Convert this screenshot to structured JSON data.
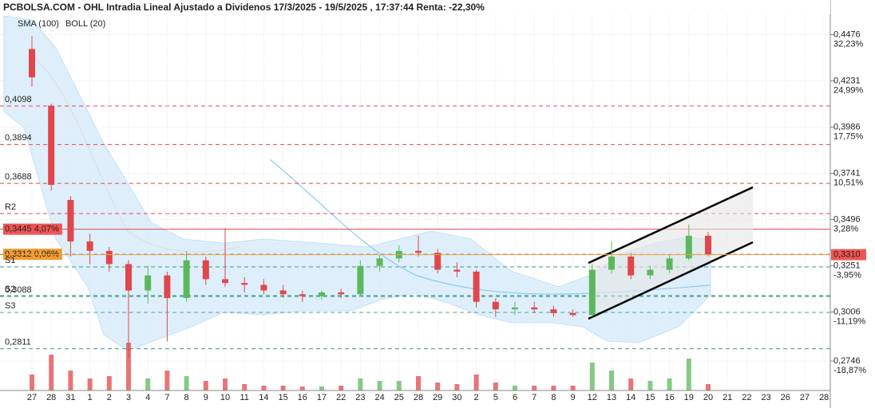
{
  "chart_data": {
    "type": "candlestick",
    "title": "PCBOLSA.COM - OHL Intradia Lineal Ajustado a Dividenos 17/3/2025 - 19/5/2025 , 17:37:44 Renta: -22,30%",
    "indicators": [
      {
        "name": "SMA (100)",
        "color": "#8ccbf2"
      },
      {
        "name": "BOLL (20)",
        "color": "#d8d8d8"
      }
    ],
    "categories": [
      "27",
      "28",
      "31",
      "1",
      "2",
      "3",
      "4",
      "7",
      "8",
      "9",
      "10",
      "11",
      "14",
      "15",
      "16",
      "17",
      "22",
      "23",
      "24",
      "25",
      "28",
      "29",
      "30",
      "2",
      "5",
      "6",
      "7",
      "8",
      "9",
      "12",
      "13",
      "14",
      "15",
      "16",
      "19",
      "20",
      "21",
      "22",
      "23",
      "26",
      "27",
      "28"
    ],
    "open": [
      0.44,
      0.41,
      0.36,
      0.338,
      0.333,
      0.326,
      0.312,
      0.32,
      0.308,
      0.328,
      0.318,
      0.316,
      0.315,
      0.312,
      0.31,
      0.309,
      0.311,
      0.31,
      0.325,
      0.329,
      0.333,
      0.332,
      0.323,
      0.322,
      0.306,
      0.302,
      0.303,
      0.302,
      0.3,
      0.299,
      0.323,
      0.33,
      0.32,
      0.323,
      0.329,
      0.341,
      null,
      null,
      null,
      null,
      null,
      null
    ],
    "high": [
      0.447,
      0.411,
      0.362,
      0.342,
      0.335,
      0.328,
      0.325,
      0.322,
      0.333,
      0.33,
      0.345,
      0.319,
      0.318,
      0.315,
      0.312,
      0.312,
      0.313,
      0.328,
      0.331,
      0.336,
      0.341,
      0.334,
      0.327,
      0.323,
      0.308,
      0.306,
      0.306,
      0.304,
      0.302,
      0.326,
      0.338,
      0.332,
      0.325,
      0.331,
      0.347,
      0.343,
      null,
      null,
      null,
      null,
      null,
      null
    ],
    "low": [
      0.42,
      0.365,
      0.33,
      0.326,
      0.322,
      0.276,
      0.305,
      0.285,
      0.306,
      0.315,
      0.314,
      0.311,
      0.31,
      0.308,
      0.306,
      0.307,
      0.308,
      0.309,
      0.322,
      0.327,
      0.33,
      0.321,
      0.319,
      0.303,
      0.298,
      0.299,
      0.3,
      0.298,
      0.298,
      0.298,
      0.321,
      0.318,
      0.318,
      0.321,
      0.328,
      0.33,
      null,
      null,
      null,
      null,
      null,
      null
    ],
    "close": [
      0.425,
      0.368,
      0.338,
      0.333,
      0.326,
      0.312,
      0.32,
      0.308,
      0.328,
      0.318,
      0.316,
      0.315,
      0.312,
      0.31,
      0.309,
      0.311,
      0.31,
      0.325,
      0.329,
      0.333,
      0.332,
      0.323,
      0.322,
      0.306,
      0.302,
      0.303,
      0.302,
      0.3,
      0.299,
      0.323,
      0.33,
      0.32,
      0.323,
      0.329,
      0.341,
      0.331,
      null,
      null,
      null,
      null,
      null,
      null
    ],
    "volume": [
      20,
      45,
      25,
      15,
      18,
      60,
      15,
      25,
      18,
      12,
      15,
      8,
      6,
      6,
      5,
      5,
      6,
      15,
      12,
      12,
      18,
      10,
      8,
      20,
      10,
      6,
      6,
      6,
      6,
      35,
      25,
      15,
      12,
      15,
      40,
      8,
      null,
      null,
      null,
      null,
      null,
      null
    ],
    "up_color": "#5cb85c",
    "down_color": "#e0474c",
    "ylim": [
      0.259,
      0.466
    ],
    "yticks": [
      {
        "value": 0.4476,
        "label": "0,4476"
      },
      {
        "value": 0.4231,
        "label": "0,4231"
      },
      {
        "value": 0.3986,
        "label": "0,3986"
      },
      {
        "value": 0.3741,
        "label": "0,3741"
      },
      {
        "value": 0.3496,
        "label": "0,3496"
      },
      {
        "value": 0.3251,
        "label": "0,3251"
      },
      {
        "value": 0.3006,
        "label": "0,3006"
      },
      {
        "value": 0.2746,
        "label": "0,2746"
      }
    ],
    "ytick_changes": [
      "32,23%",
      "24,99%",
      "17,75%",
      "10,51%",
      "3,28%",
      "-3,95%",
      "-11,19%",
      "-18,87%"
    ],
    "levels": [
      {
        "value": 0.4231,
        "color": "#000000",
        "style": "dotted"
      },
      {
        "value": 0.4098,
        "label": "0,4098",
        "color": "#e0474c",
        "style": "dashed"
      },
      {
        "value": 0.3894,
        "label": "0,3894",
        "color": "#e0474c",
        "style": "dashed"
      },
      {
        "value": 0.3688,
        "label": "0,3688",
        "color": "#e0474c",
        "style": "dashed"
      },
      {
        "value": 0.3528,
        "label": "R2",
        "color": "#e0474c",
        "style": "dashed"
      },
      {
        "value": 0.3445,
        "label": "0,3445  4,07%",
        "color": "#e0474c",
        "style": "solid",
        "box": "#f05555"
      },
      {
        "value": 0.3312,
        "label": "0,3312  0,06%",
        "color": "#3a7bbf",
        "style": "dashed",
        "box": "#f39c33"
      },
      {
        "value": 0.3245,
        "label": "S1",
        "color": "#3a9a8a",
        "style": "dashed"
      },
      {
        "value": 0.3093,
        "label": "S2",
        "color": "#3a9a8a",
        "style": "dashed"
      },
      {
        "value": 0.3088,
        "label": "0,3088",
        "color": "#3a9a8a",
        "style": "dashed"
      },
      {
        "value": 0.3004,
        "label": "S3",
        "color": "#3a9a8a",
        "style": "dashed"
      },
      {
        "value": 0.2811,
        "label": "0,2811",
        "color": "#3a9a8a",
        "style": "dashed"
      }
    ],
    "last_price": {
      "value": 0.331,
      "label": "0,3310",
      "color": "#f05555"
    },
    "grid": true
  }
}
